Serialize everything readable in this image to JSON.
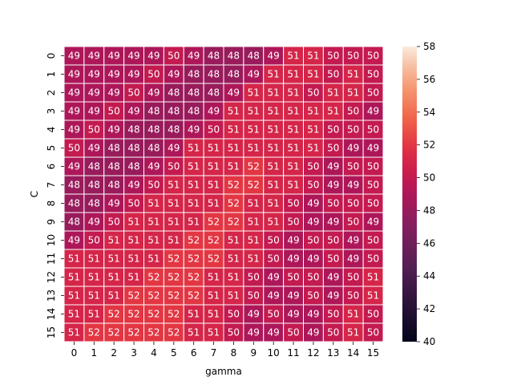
{
  "chart_data": {
    "type": "heatmap",
    "title": "",
    "xlabel": "gamma",
    "ylabel": "C",
    "x_ticks": [
      "0",
      "1",
      "2",
      "3",
      "4",
      "5",
      "6",
      "7",
      "8",
      "9",
      "10",
      "11",
      "12",
      "13",
      "14",
      "15"
    ],
    "y_ticks": [
      "0",
      "1",
      "2",
      "3",
      "4",
      "5",
      "6",
      "7",
      "8",
      "9",
      "10",
      "11",
      "12",
      "13",
      "14",
      "15"
    ],
    "vmin": 40,
    "vmax": 58,
    "colorbar_ticks": [
      "40",
      "42",
      "44",
      "46",
      "48",
      "50",
      "52",
      "54",
      "56",
      "58"
    ],
    "colormap": "rocket",
    "values": [
      [
        49,
        49,
        49,
        49,
        49,
        50,
        49,
        48,
        48,
        48,
        49,
        51,
        51,
        50,
        50,
        50
      ],
      [
        49,
        49,
        49,
        49,
        50,
        49,
        48,
        48,
        48,
        49,
        51,
        51,
        51,
        50,
        51,
        50
      ],
      [
        49,
        49,
        49,
        50,
        49,
        48,
        48,
        48,
        49,
        51,
        51,
        51,
        50,
        51,
        51,
        50
      ],
      [
        49,
        49,
        50,
        49,
        48,
        48,
        48,
        49,
        51,
        51,
        51,
        51,
        51,
        51,
        50,
        49
      ],
      [
        49,
        50,
        49,
        48,
        48,
        48,
        49,
        50,
        51,
        51,
        51,
        51,
        51,
        50,
        50,
        50
      ],
      [
        50,
        49,
        48,
        48,
        48,
        49,
        51,
        51,
        51,
        51,
        51,
        51,
        51,
        50,
        49,
        49
      ],
      [
        49,
        48,
        48,
        48,
        49,
        50,
        51,
        51,
        51,
        52,
        51,
        51,
        50,
        49,
        50,
        50
      ],
      [
        48,
        48,
        48,
        49,
        50,
        51,
        51,
        51,
        52,
        52,
        51,
        51,
        50,
        49,
        49,
        50
      ],
      [
        48,
        48,
        49,
        50,
        51,
        51,
        51,
        51,
        52,
        51,
        51,
        50,
        49,
        50,
        50,
        50
      ],
      [
        48,
        49,
        50,
        51,
        51,
        51,
        51,
        52,
        52,
        51,
        51,
        50,
        49,
        49,
        50,
        49
      ],
      [
        49,
        50,
        51,
        51,
        51,
        51,
        52,
        52,
        51,
        51,
        50,
        49,
        50,
        50,
        49,
        50
      ],
      [
        51,
        51,
        51,
        51,
        51,
        52,
        52,
        52,
        51,
        51,
        50,
        49,
        49,
        50,
        49,
        50
      ],
      [
        51,
        51,
        51,
        51,
        52,
        52,
        52,
        51,
        51,
        50,
        49,
        50,
        50,
        49,
        50,
        51
      ],
      [
        51,
        51,
        51,
        52,
        52,
        52,
        52,
        51,
        51,
        50,
        49,
        49,
        50,
        49,
        50,
        51
      ],
      [
        51,
        51,
        52,
        52,
        52,
        52,
        51,
        51,
        50,
        49,
        50,
        49,
        49,
        50,
        51,
        50
      ],
      [
        51,
        52,
        52,
        52,
        52,
        52,
        51,
        51,
        50,
        49,
        49,
        50,
        49,
        50,
        51,
        50
      ]
    ]
  }
}
